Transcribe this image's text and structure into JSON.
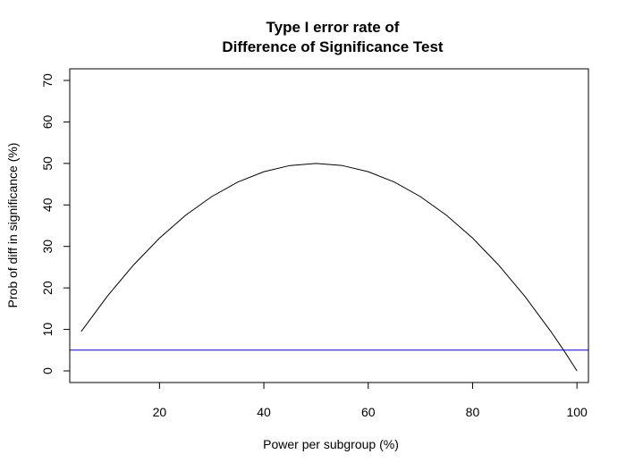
{
  "chart_data": {
    "type": "line",
    "title_lines": [
      "Type I error rate of",
      "Difference of Significance Test"
    ],
    "xlabel": "Power per subgroup (%)",
    "ylabel": "Prob of diff in significance (%)",
    "xlim": [
      2.8,
      102.2
    ],
    "ylim": [
      -2.8,
      72.8
    ],
    "xticks": [
      20,
      40,
      60,
      80,
      100
    ],
    "yticks": [
      0,
      10,
      20,
      30,
      40,
      50,
      60,
      70
    ],
    "grid": false,
    "series": [
      {
        "color": "#000000",
        "x": [
          5,
          10,
          15,
          20,
          25,
          30,
          35,
          40,
          45,
          50,
          55,
          60,
          65,
          70,
          75,
          80,
          85,
          90,
          95,
          97.5,
          100
        ],
        "y": [
          9.5,
          18.0,
          25.5,
          32.0,
          37.5,
          42.0,
          45.5,
          48.0,
          49.5,
          50.0,
          49.5,
          48.0,
          45.5,
          42.0,
          37.5,
          32.0,
          25.5,
          18.0,
          9.5,
          4.9,
          0.0
        ]
      }
    ],
    "hline": {
      "y": 5,
      "color": "#0000cc"
    }
  }
}
